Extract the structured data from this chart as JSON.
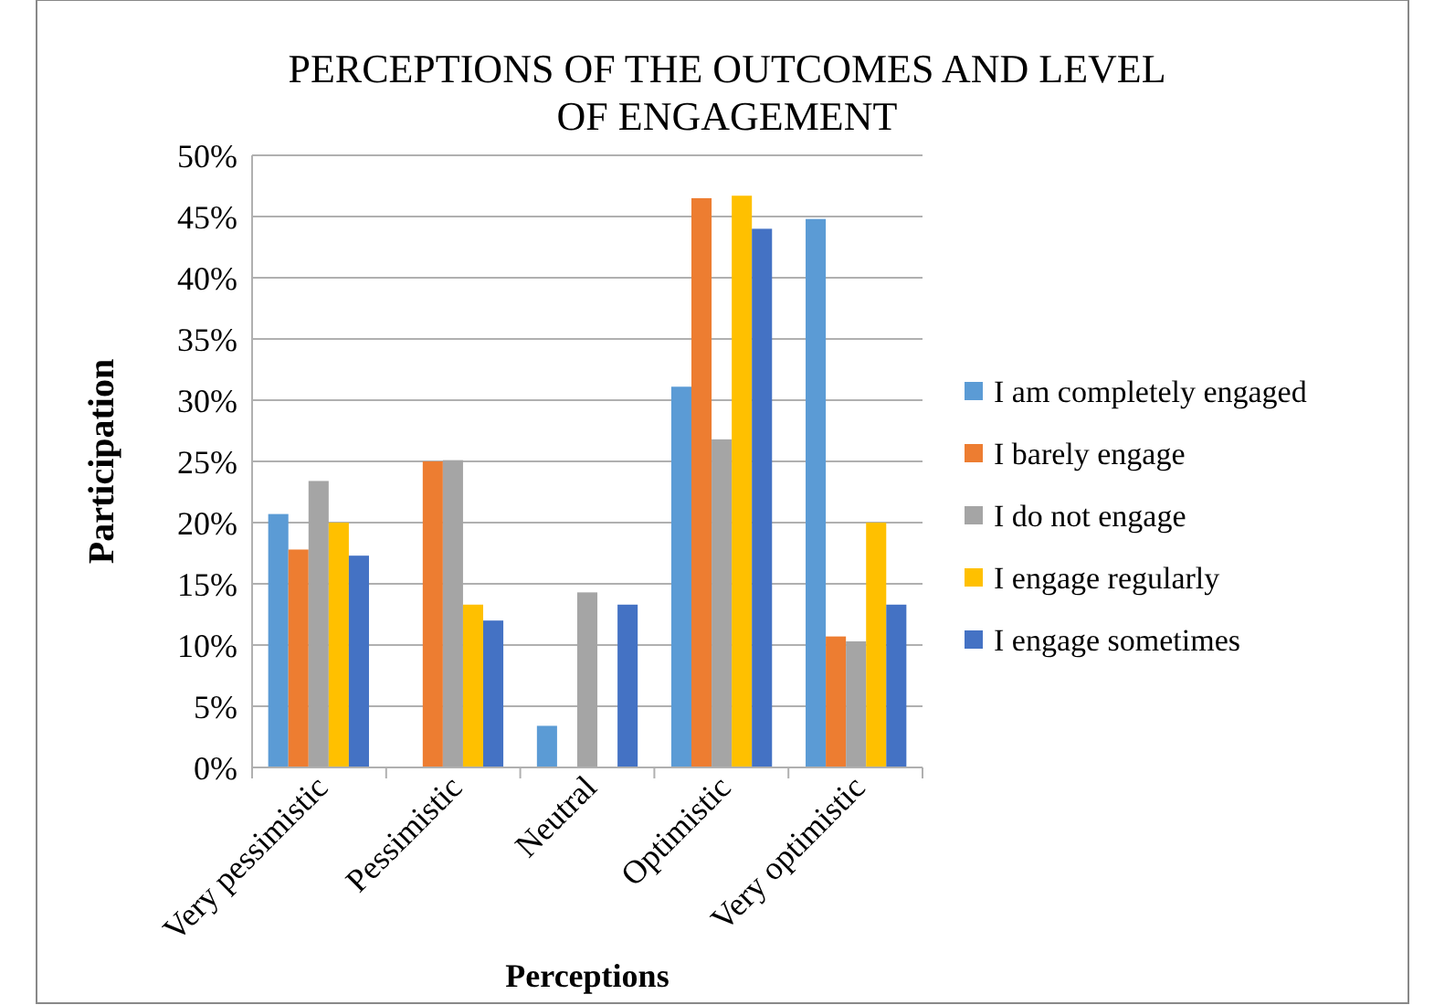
{
  "chart_data": {
    "type": "bar",
    "title": "PERCEPTIONS OF THE OUTCOMES AND LEVEL OF ENGAGEMENT",
    "xlabel": "Perceptions",
    "ylabel": "Participation",
    "categories": [
      "Very pessimistic",
      "Pessimistic",
      "Neutral",
      "Optimistic",
      "Very optimistic"
    ],
    "series": [
      {
        "name": "I am completely engaged",
        "color": "#5b9bd5",
        "values": [
          20.7,
          0,
          3.4,
          31.1,
          44.8
        ]
      },
      {
        "name": "I barely engage",
        "color": "#ed7d31",
        "values": [
          17.8,
          25,
          0,
          46.5,
          10.7
        ]
      },
      {
        "name": "I do not engage",
        "color": "#a5a5a5",
        "values": [
          23.4,
          25.1,
          14.3,
          26.8,
          10.3
        ]
      },
      {
        "name": "I engage regularly",
        "color": "#ffc000",
        "values": [
          20,
          13.3,
          0,
          46.7,
          20
        ]
      },
      {
        "name": "I engage sometimes",
        "color": "#4472c4",
        "values": [
          17.3,
          12,
          13.3,
          44,
          13.3
        ]
      }
    ],
    "ylim": [
      0,
      50
    ],
    "yticks": [
      {
        "value": 0,
        "label": "0%"
      },
      {
        "value": 5,
        "label": "5%"
      },
      {
        "value": 10,
        "label": "10%"
      },
      {
        "value": 15,
        "label": "15%"
      },
      {
        "value": 20,
        "label": "20%"
      },
      {
        "value": 25,
        "label": "25%"
      },
      {
        "value": 30,
        "label": "30%"
      },
      {
        "value": 35,
        "label": "35%"
      },
      {
        "value": 40,
        "label": "40%"
      },
      {
        "value": 45,
        "label": "45%"
      },
      {
        "value": 50,
        "label": "50%"
      }
    ],
    "grid": "y",
    "legend": "right"
  }
}
